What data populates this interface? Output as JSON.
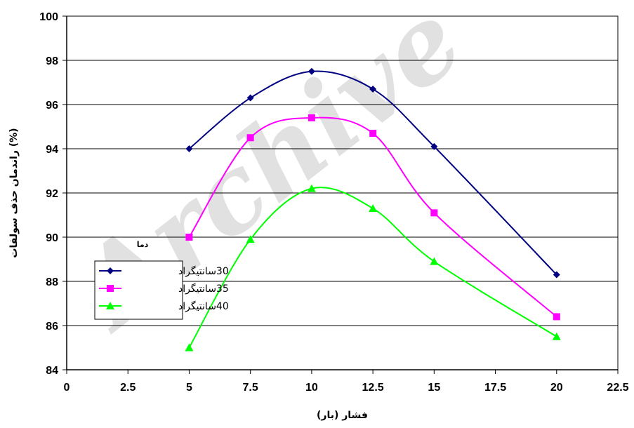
{
  "watermark": "Archive",
  "chart_data": {
    "type": "line",
    "xlabel": "فشار (بار)",
    "ylabel": "راندمان حذف سولفات (%)",
    "xlim": [
      0,
      22.5
    ],
    "ylim": [
      84,
      100
    ],
    "x_ticks": [
      "0",
      "2.5",
      "5",
      "7.5",
      "10",
      "12.5",
      "15",
      "17.5",
      "20",
      "22.5"
    ],
    "y_ticks": [
      "84",
      "86",
      "88",
      "90",
      "92",
      "94",
      "96",
      "98",
      "100"
    ],
    "grid": "horizontal",
    "smooth": true,
    "legend": {
      "title": "دما",
      "position": "left-middle"
    },
    "x": [
      5,
      7.5,
      10,
      12.5,
      15,
      20
    ],
    "series": [
      {
        "name": "30سانتیگراد",
        "color": "#000080",
        "marker": "diamond",
        "values": [
          94.0,
          96.3,
          97.5,
          96.7,
          94.1,
          88.3
        ]
      },
      {
        "name": "35سانتیگراد",
        "color": "#FF00FF",
        "marker": "square",
        "values": [
          90.0,
          94.5,
          95.4,
          94.7,
          91.1,
          86.4
        ]
      },
      {
        "name": "40سانتیگراد",
        "color": "#00FF00",
        "marker": "triangle",
        "values": [
          85.0,
          89.9,
          92.2,
          91.3,
          88.9,
          85.5
        ]
      }
    ]
  }
}
